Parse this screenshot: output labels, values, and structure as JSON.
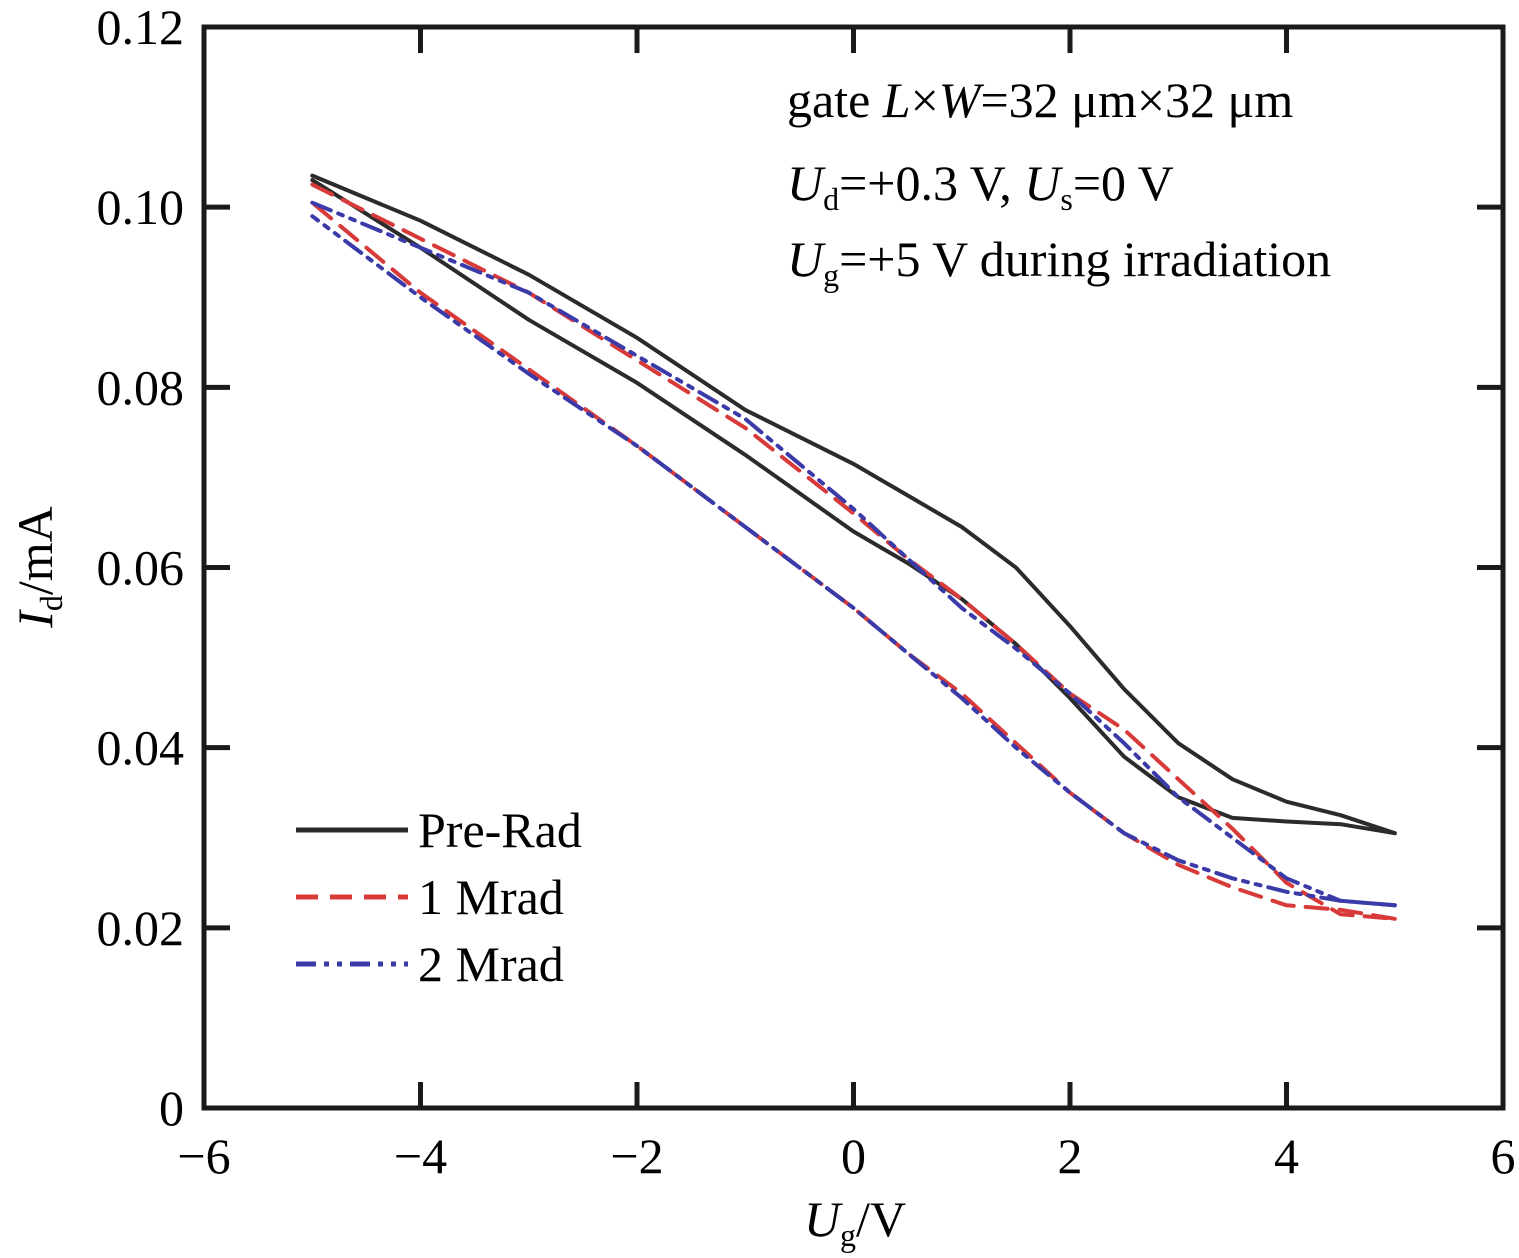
{
  "chart_data": {
    "type": "line",
    "xlabel": {
      "main": "U",
      "sub": "g",
      "unit": "/V"
    },
    "ylabel": {
      "main": "I",
      "sub": "d",
      "unit": "/mA"
    },
    "xlim": [
      -6,
      6
    ],
    "ylim": [
      0,
      0.12
    ],
    "xticks": [
      -6,
      -4,
      -2,
      0,
      2,
      4,
      6
    ],
    "xtick_labels": [
      "−6",
      "−4",
      "−2",
      "0",
      "2",
      "4",
      "6"
    ],
    "yticks": [
      0,
      0.02,
      0.04,
      0.06,
      0.08,
      0.1,
      0.12
    ],
    "ytick_labels": [
      "0",
      "0.02",
      "0.04",
      "0.06",
      "0.08",
      "0.10",
      "0.12"
    ],
    "grid": false,
    "legend_position": "bottom-left",
    "annotations": {
      "line1": {
        "prefix": "gate ",
        "italic": "L",
        "mid": "×",
        "italic2": "W",
        "suffix": "=32 μm×32 μm"
      },
      "line2": {
        "a_main": "U",
        "a_sub": "d",
        "a_val": "=+0.3 V, ",
        "b_main": "U",
        "b_sub": "s",
        "b_val": "=0 V"
      },
      "line3": {
        "main": "U",
        "sub": "g",
        "val": "=+5 V during irradiation"
      }
    },
    "series": [
      {
        "name": "Pre-Rad",
        "color": "#2b2b2b",
        "dash": "solid",
        "forward": {
          "x": [
            -5,
            -4,
            -3,
            -2,
            -1,
            0,
            0.5,
            1,
            1.5,
            2,
            2.5,
            3,
            3.5,
            4,
            4.5,
            5
          ],
          "y": [
            0.1035,
            0.0985,
            0.0925,
            0.0855,
            0.0775,
            0.0715,
            0.068,
            0.0645,
            0.06,
            0.0535,
            0.0465,
            0.0405,
            0.0365,
            0.034,
            0.0325,
            0.0305
          ]
        },
        "reverse": {
          "x": [
            5,
            4.5,
            4,
            3.5,
            3,
            2.5,
            2,
            1.5,
            1,
            0.5,
            0,
            -1,
            -2,
            -3,
            -4,
            -5
          ],
          "y": [
            0.0305,
            0.0315,
            0.0318,
            0.0322,
            0.0345,
            0.039,
            0.0455,
            0.0515,
            0.0565,
            0.0605,
            0.064,
            0.0725,
            0.0805,
            0.0875,
            0.0955,
            0.103
          ]
        }
      },
      {
        "name": "1 Mrad",
        "color": "#d83a3a",
        "dash": "dashed",
        "forward": {
          "x": [
            -5,
            -4,
            -3,
            -2,
            -1,
            0,
            0.5,
            1,
            1.5,
            2,
            2.5,
            3,
            3.5,
            4,
            4.5,
            5
          ],
          "y": [
            0.1025,
            0.0965,
            0.0905,
            0.083,
            0.0755,
            0.066,
            0.061,
            0.0565,
            0.0515,
            0.046,
            0.042,
            0.0365,
            0.031,
            0.025,
            0.0215,
            0.021
          ]
        },
        "reverse": {
          "x": [
            5,
            4.5,
            4,
            3.5,
            3,
            2.5,
            2,
            1.5,
            1,
            0.5,
            0,
            -1,
            -2,
            -3,
            -4,
            -5
          ],
          "y": [
            0.021,
            0.022,
            0.0225,
            0.0245,
            0.027,
            0.0305,
            0.035,
            0.0405,
            0.046,
            0.0505,
            0.0555,
            0.0645,
            0.0735,
            0.082,
            0.0905,
            0.1005
          ]
        }
      },
      {
        "name": "2 Mrad",
        "color": "#3a3aa8",
        "dash": "dashdotdot",
        "forward": {
          "x": [
            -5,
            -4,
            -3,
            -2,
            -1,
            0,
            0.5,
            1,
            1.5,
            2,
            2.5,
            3,
            3.5,
            4,
            4.5,
            5
          ],
          "y": [
            0.1005,
            0.0955,
            0.0905,
            0.0835,
            0.0765,
            0.0665,
            0.061,
            0.0555,
            0.051,
            0.046,
            0.0405,
            0.0345,
            0.03,
            0.0255,
            0.023,
            0.0225
          ]
        },
        "reverse": {
          "x": [
            5,
            4.5,
            4,
            3.5,
            3,
            2.5,
            2,
            1.5,
            1,
            0.5,
            0,
            -1,
            -2,
            -3,
            -4,
            -5
          ],
          "y": [
            0.0225,
            0.023,
            0.024,
            0.0255,
            0.0275,
            0.0305,
            0.035,
            0.04,
            0.0455,
            0.0505,
            0.0555,
            0.0645,
            0.0735,
            0.0815,
            0.09,
            0.099
          ]
        }
      }
    ]
  }
}
